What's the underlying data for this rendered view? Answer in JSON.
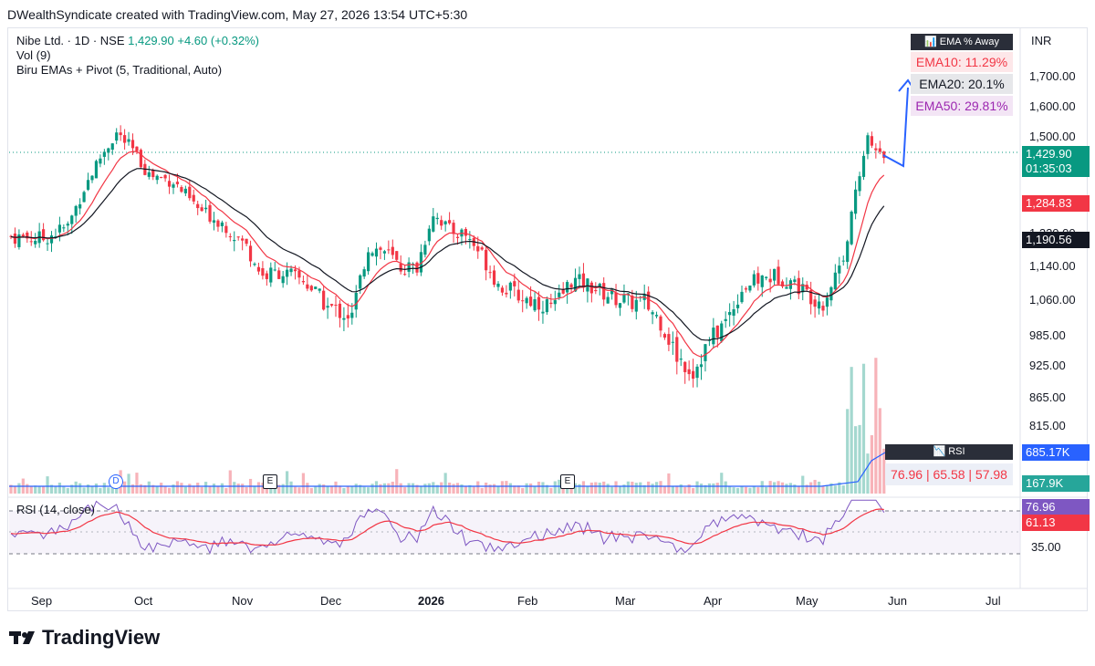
{
  "header": {
    "watermark": "DWealthSyndicate created with TradingView.com, May 27, 2026 13:54 UTC+5:30"
  },
  "legend": {
    "symbol": "Nibe Ltd. · 1D · NSE",
    "last": "1,429.90",
    "change": "+4.60 (+0.32%)",
    "vol": "Vol (9)",
    "indicator": "Biru EMAs + Pivot (5, Traditional, Auto)",
    "rsi": "RSI (14, close)"
  },
  "ema_panel": {
    "title": "📊 EMA % Away",
    "ema10": "EMA10: 11.29%",
    "ema20": "EMA20: 20.1%",
    "ema50": "EMA50: 29.81%"
  },
  "rsi_panel": {
    "title": "RSI",
    "values": "76.96 | 65.58 | 57.98"
  },
  "price_axis": {
    "currency": "INR",
    "ticks": [
      "1,700.00",
      "1,600.00",
      "1,500.00",
      "1,220.00",
      "1,140.00",
      "1,060.00",
      "985.00",
      "925.00",
      "865.00",
      "815.00"
    ],
    "last_price": "1,429.90",
    "countdown": "01:35:03",
    "ema10_tag": "1,284.83",
    "ema20_tag": "1,190.56",
    "volume_tag": "685.17K",
    "volume_tag2": "167.9K"
  },
  "rsi_axis": {
    "value_tag": "76.96",
    "ma_tag": "61.13",
    "tick": "35.00"
  },
  "events": {
    "dividend": "D",
    "earnings1": "E",
    "earnings2": "E"
  },
  "time_axis": [
    "Sep",
    "Oct",
    "Nov",
    "Dec",
    "2026",
    "Feb",
    "Mar",
    "Apr",
    "May",
    "Jun",
    "Jul"
  ],
  "branding": {
    "name": "TradingView"
  },
  "colors": {
    "up": "#089981",
    "down": "#f23645",
    "ema10": "#f23645",
    "ema20": "#131722",
    "rsi": "#7e57c2",
    "rsi_ma": "#f23645",
    "arrow": "#2962ff"
  },
  "chart_data": {
    "type": "candlestick",
    "title": "Nibe Ltd. · 1D · NSE",
    "ylabel": "INR",
    "x": [
      "Sep 2025",
      "Oct 2025",
      "Nov 2025",
      "Dec 2025",
      "Jan 2026",
      "Feb 2026",
      "Mar 2026",
      "Apr 2026",
      "May 2026",
      "Jun 2026"
    ],
    "series": [
      {
        "name": "Close (approx, month start)",
        "values": [
          1200,
          1490,
          1205,
          1040,
          1230,
          1040,
          1060,
          870,
          1090,
          1429.9
        ]
      },
      {
        "name": "EMA10",
        "last": 1284.83
      },
      {
        "name": "EMA20",
        "last": 1190.56
      },
      {
        "name": "RSI (14, close)",
        "last": 76.96,
        "ma": 61.13
      }
    ],
    "annotations": [
      "EMA10: 11.29%",
      "EMA20: 20.1%",
      "EMA50: 29.81%",
      "76.96 | 65.58 | 57.98"
    ],
    "ylim": [
      780,
      1760
    ]
  }
}
